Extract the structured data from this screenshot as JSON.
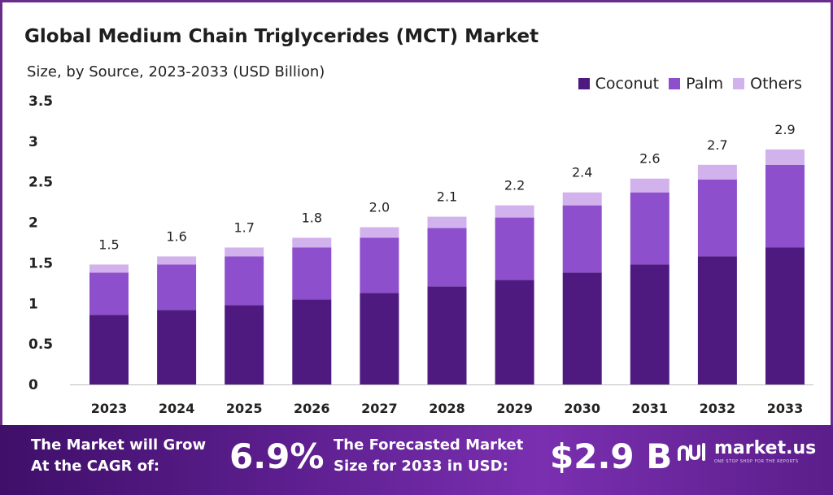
{
  "header": {
    "title": "Global Medium Chain Triglycerides (MCT) Market",
    "subtitle": "Size, by Source, 2023-2033 (USD Billion)"
  },
  "legend": [
    {
      "label": "Coconut",
      "color": "#4f1a80"
    },
    {
      "label": "Palm",
      "color": "#8e4fcc"
    },
    {
      "label": "Others",
      "color": "#d2b2ec"
    }
  ],
  "chart_data": {
    "type": "bar",
    "stacked": true,
    "categories": [
      "2023",
      "2024",
      "2025",
      "2026",
      "2027",
      "2028",
      "2029",
      "2030",
      "2031",
      "2032",
      "2033"
    ],
    "series": [
      {
        "name": "Coconut",
        "color": "#4f1a80",
        "values": [
          0.86,
          0.92,
          0.98,
          1.05,
          1.13,
          1.21,
          1.29,
          1.38,
          1.48,
          1.58,
          1.69
        ]
      },
      {
        "name": "Palm",
        "color": "#8e4fcc",
        "values": [
          0.52,
          0.56,
          0.6,
          0.64,
          0.68,
          0.72,
          0.77,
          0.83,
          0.89,
          0.95,
          1.02
        ]
      },
      {
        "name": "Others",
        "color": "#d2b2ec",
        "values": [
          0.1,
          0.1,
          0.11,
          0.12,
          0.13,
          0.14,
          0.15,
          0.16,
          0.17,
          0.18,
          0.19
        ]
      }
    ],
    "totals_labels": [
      "1.5",
      "1.6",
      "1.7",
      "1.8",
      "2.0",
      "2.1",
      "2.2",
      "2.4",
      "2.6",
      "2.7",
      "2.9"
    ],
    "yticks": [
      "0",
      "0.5",
      "1",
      "1.5",
      "2",
      "2.5",
      "3",
      "3.5"
    ],
    "ylim": [
      0,
      3.5
    ],
    "grid": false,
    "legend_position": "top-right"
  },
  "footer": {
    "cagr_label_line1": "The Market will Grow",
    "cagr_label_line2": "At the CAGR of:",
    "cagr_value": "6.9%",
    "forecast_label_line1": "The Forecasted Market",
    "forecast_label_line2": "Size for 2033 in USD:",
    "forecast_value": "$2.9 B",
    "brand_name": "market.us",
    "brand_tagline": "ONE STOP SHOP FOR THE REPORTS",
    "brand_icon": "market-us-logo-icon"
  }
}
